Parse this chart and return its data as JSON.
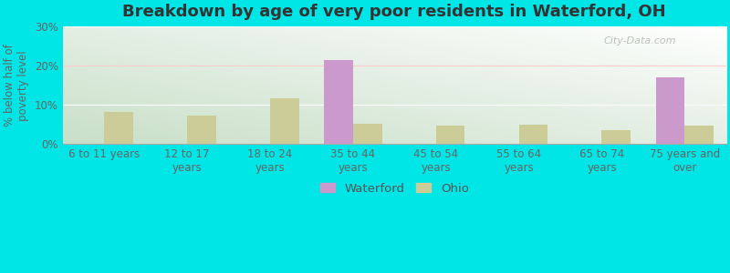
{
  "title": "Breakdown by age of very poor residents in Waterford, OH",
  "ylabel": "% below half of\npoverty level",
  "categories": [
    "6 to 11 years",
    "12 to 17\nyears",
    "18 to 24\nyears",
    "35 to 44\nyears",
    "45 to 54\nyears",
    "55 to 64\nyears",
    "65 to 74\nyears",
    "75 years and\nover"
  ],
  "waterford": [
    0,
    0,
    0,
    21.5,
    0,
    0,
    0,
    17.0
  ],
  "ohio": [
    8.2,
    7.2,
    11.8,
    5.2,
    4.8,
    5.0,
    3.5,
    4.8
  ],
  "waterford_color": "#cc99cc",
  "ohio_color": "#cccc99",
  "ylim": [
    0,
    30
  ],
  "yticks": [
    0,
    10,
    20,
    30
  ],
  "ytick_labels": [
    "0%",
    "10%",
    "20%",
    "30%"
  ],
  "bar_width": 0.35,
  "outer_color": "#00e5e5",
  "watermark": "City-Data.com",
  "title_fontsize": 13,
  "axis_fontsize": 8.5,
  "legend_fontsize": 9.5
}
